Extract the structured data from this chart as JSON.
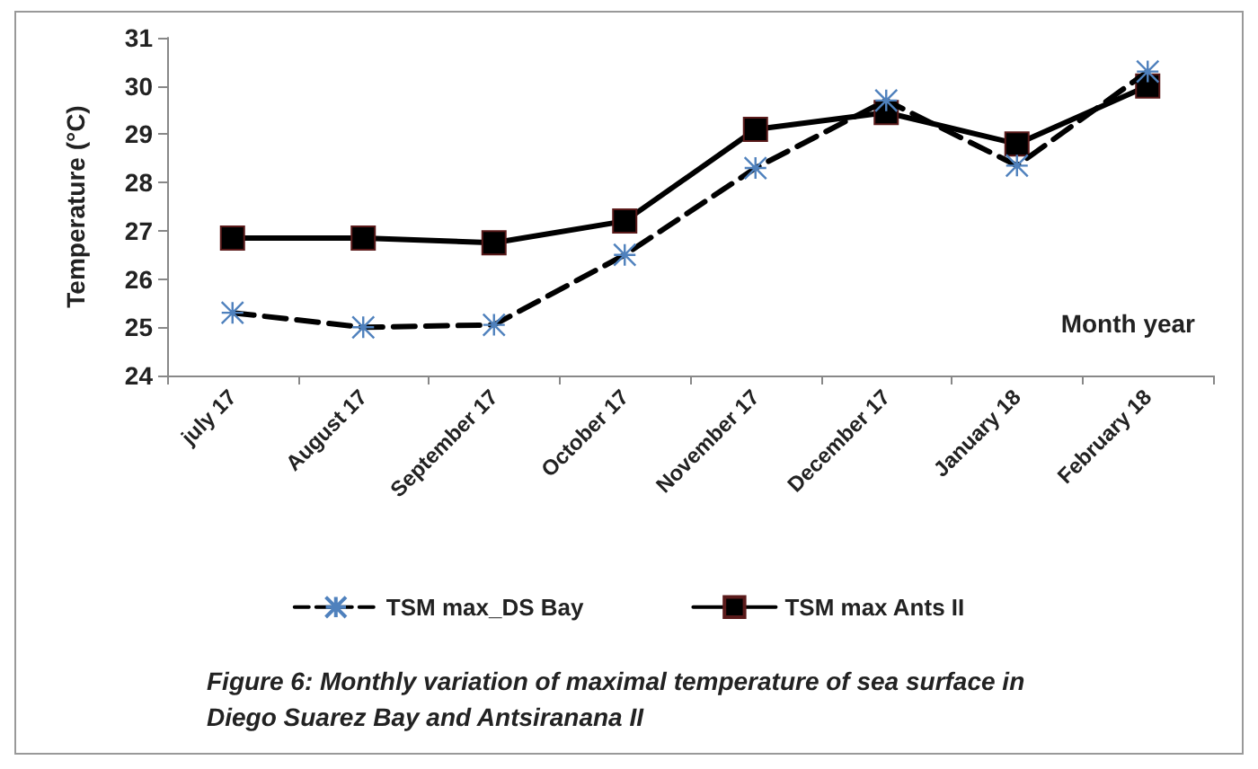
{
  "chart_data": {
    "type": "line",
    "ylabel": "Temperature (°C)",
    "xlabel": "Month year",
    "categories": [
      "july 17",
      "August 17",
      "September 17",
      "October 17",
      "November 17",
      "December 17",
      "January 18",
      "February 18"
    ],
    "series": [
      {
        "name": "TSM max_DS Bay",
        "color": "#000000",
        "marker": "cross",
        "line_style": "dashed",
        "values": [
          25.3,
          25.0,
          25.05,
          26.5,
          28.3,
          29.7,
          28.35,
          30.3
        ]
      },
      {
        "name": "TSM max Ants II",
        "color": "#000000",
        "marker": "square",
        "line_style": "solid",
        "values": [
          26.85,
          26.85,
          26.75,
          27.2,
          29.1,
          29.45,
          28.8,
          30.0
        ]
      }
    ],
    "ylim": [
      24,
      31
    ],
    "yticks": [
      24,
      25,
      26,
      27,
      28,
      29,
      30,
      31
    ],
    "grid": false,
    "legend": "bottom",
    "annotations": [
      "Figure 6: Monthly variation of maximal temperature of sea surface in Diego Suarez Bay and Antsiranana II"
    ]
  }
}
